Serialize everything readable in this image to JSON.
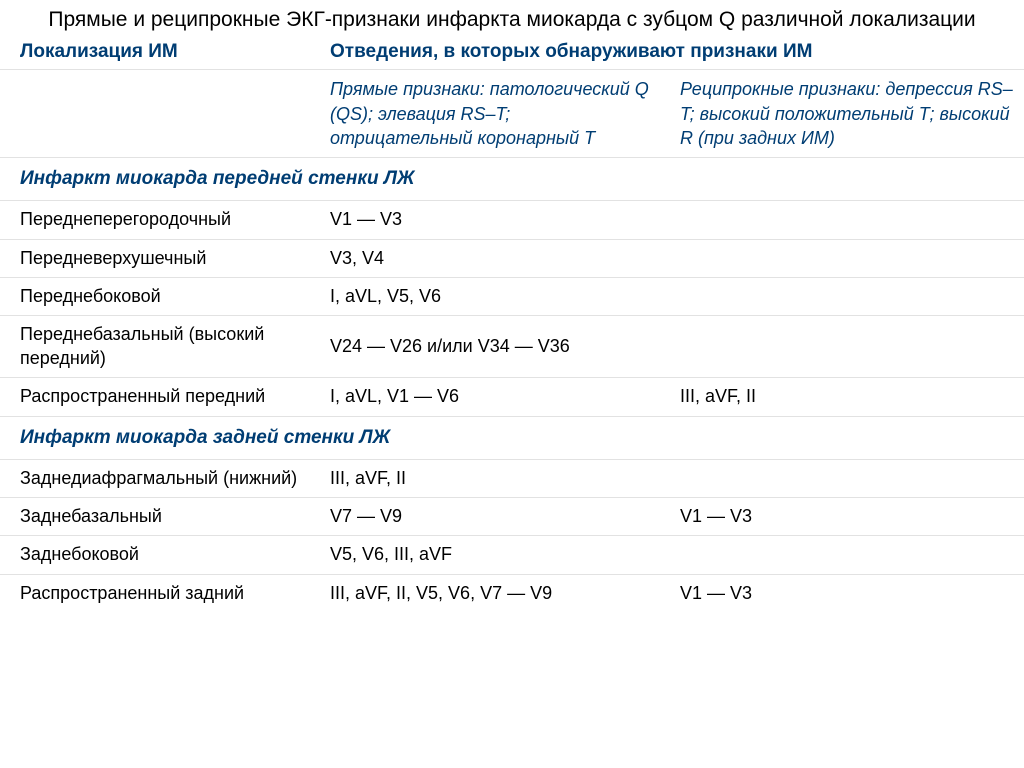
{
  "title": "Прямые и реципрокные ЭКГ-признаки инфаркта миокарда с зубцом Q различной локализации",
  "colors": {
    "heading": "#003d73",
    "text": "#000000",
    "border": "#e2e2e2",
    "background": "#ffffff"
  },
  "header": {
    "col1": "Локализация ИМ",
    "col23": "Отведения, в которых обнаруживают признаки ИМ"
  },
  "subheader": {
    "direct": "Прямые признаки: патологический Q (QS); элевация RS–T; отрицательный коронарный Т",
    "reciprocal": "Реципрокные признаки: депрессия RS–T;\nвысокий положительный Т; высокий R (при задних ИМ)"
  },
  "section1": "Инфаркт миокарда передней стенки ЛЖ",
  "rows1": [
    {
      "loc": "Переднеперегородочный",
      "direct": "V1 — V3",
      "recip": ""
    },
    {
      "loc": "Передневерхушечный",
      "direct": "V3, V4",
      "recip": ""
    },
    {
      "loc": "Переднебоковой",
      "direct": "I, aVL, V5, V6",
      "recip": ""
    },
    {
      "loc": "Переднебазальный (высокий передний)",
      "direct": "V24 — V26 и/или V34 — V36",
      "recip": ""
    },
    {
      "loc": "Распространенный передний",
      "direct": "I, aVL, V1 — V6",
      "recip": "III, aVF, II"
    }
  ],
  "section2": "Инфаркт миокарда задней стенки ЛЖ",
  "rows2": [
    {
      "loc": "Заднедиафрагмальный (нижний)",
      "direct": "III, aVF, II",
      "recip": ""
    },
    {
      "loc": "Заднебазальный",
      "direct": "V7 — V9",
      "recip": "V1 — V3"
    },
    {
      "loc": "Заднебоковой",
      "direct": "V5, V6, III, aVF",
      "recip": ""
    },
    {
      "loc": "Распространенный задний",
      "direct": "III, aVF, II, V5, V6, V7 — V9",
      "recip": "V1 — V3"
    }
  ]
}
